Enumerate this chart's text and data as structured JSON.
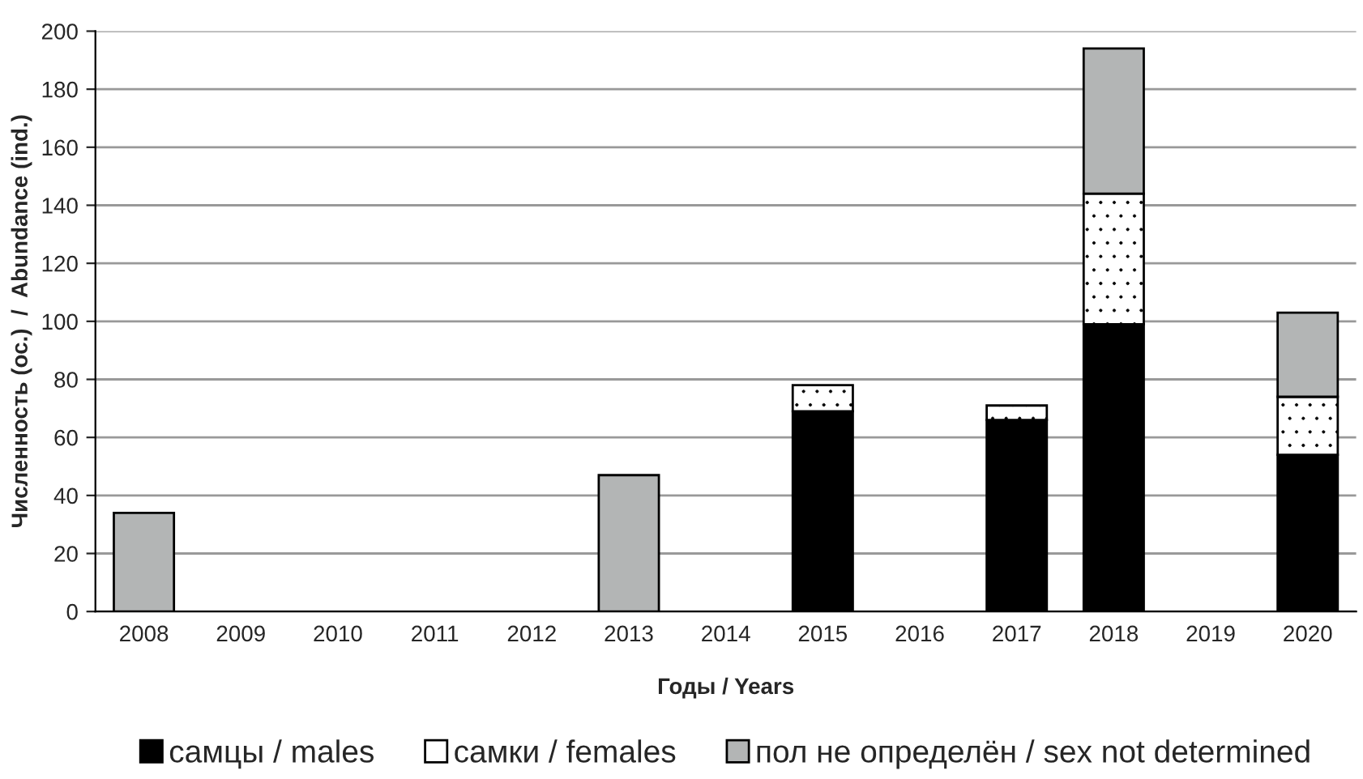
{
  "chart_data": {
    "type": "bar",
    "stacked": true,
    "xlabel": "Годы / Years",
    "ylabel": "Численность (ос.)  /  Abundance (ind.)",
    "categories": [
      "2008",
      "2009",
      "2010",
      "2011",
      "2012",
      "2013",
      "2014",
      "2015",
      "2016",
      "2017",
      "2018",
      "2019",
      "2020"
    ],
    "series": [
      {
        "name": "самцы / males",
        "color": "#000000",
        "values": [
          null,
          null,
          null,
          null,
          null,
          null,
          null,
          69,
          null,
          66,
          99,
          null,
          54
        ]
      },
      {
        "name": "самки / females",
        "color": "#ffffff",
        "values": [
          null,
          null,
          null,
          null,
          null,
          null,
          null,
          9,
          null,
          5,
          45,
          null,
          20
        ]
      },
      {
        "name": "пол не определён / sex not determined",
        "color": "#b3b5b5",
        "values": [
          34,
          null,
          null,
          null,
          null,
          47,
          null,
          null,
          null,
          null,
          50,
          null,
          29
        ]
      }
    ],
    "ylim": [
      0,
      200
    ],
    "yticks": [
      0,
      20,
      40,
      60,
      80,
      100,
      120,
      140,
      160,
      180,
      200
    ],
    "grid": "y",
    "legend": "bottom"
  }
}
